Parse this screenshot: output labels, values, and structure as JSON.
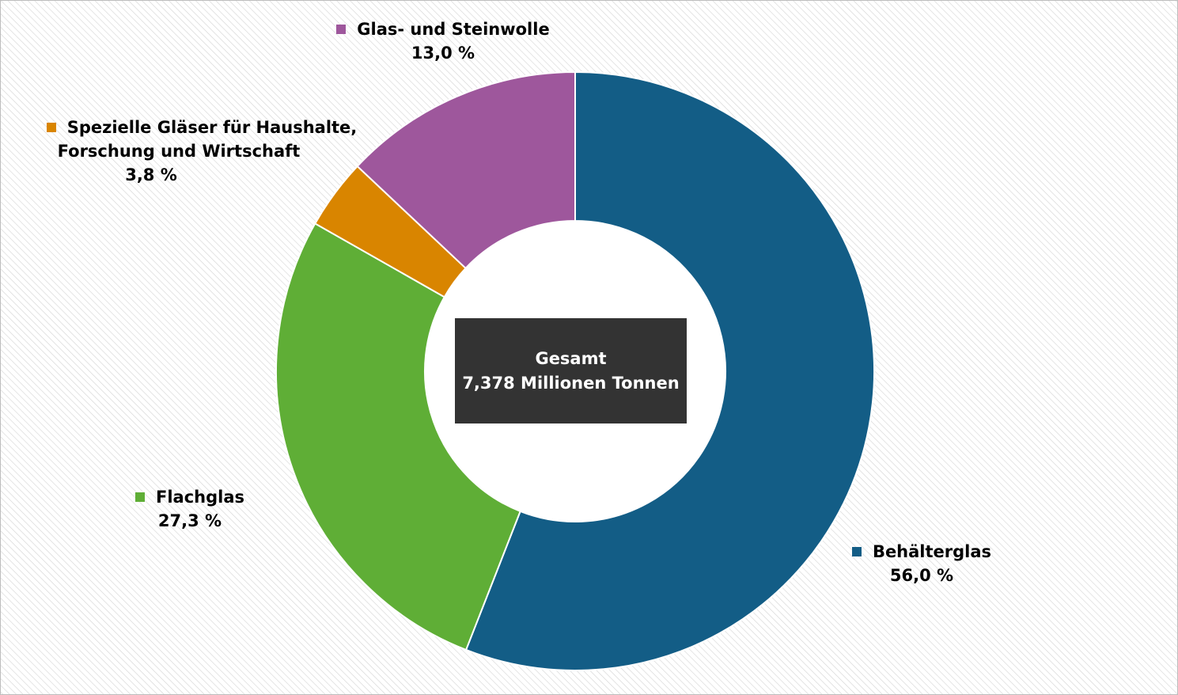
{
  "chart_data": {
    "type": "pie",
    "subtype": "donut",
    "center_label": {
      "line1": "Gesamt",
      "line2": "7,378 Millionen Tonnen"
    },
    "slices": [
      {
        "name": "Behälterglas",
        "value": 56.0,
        "value_label": "56,0 %",
        "color": "#135d86"
      },
      {
        "name": "Flachglas",
        "value": 27.3,
        "value_label": "27,3 %",
        "color": "#5fae36"
      },
      {
        "name": "Spezielle Gläser für Haushalte, Forschung und Wirtschaft",
        "name_lines": [
          "Spezielle Gläser für Haushalte,",
          "Forschung und Wirtschaft"
        ],
        "value": 3.8,
        "value_label": "3,8 %",
        "color": "#d98500"
      },
      {
        "name": "Glas- und Steinwolle",
        "value": 13.0,
        "value_label": "13,0 %",
        "color": "#9e579c"
      }
    ],
    "start_angle": "12 o'clock",
    "direction": "clockwise",
    "background": "hatched light grey"
  }
}
